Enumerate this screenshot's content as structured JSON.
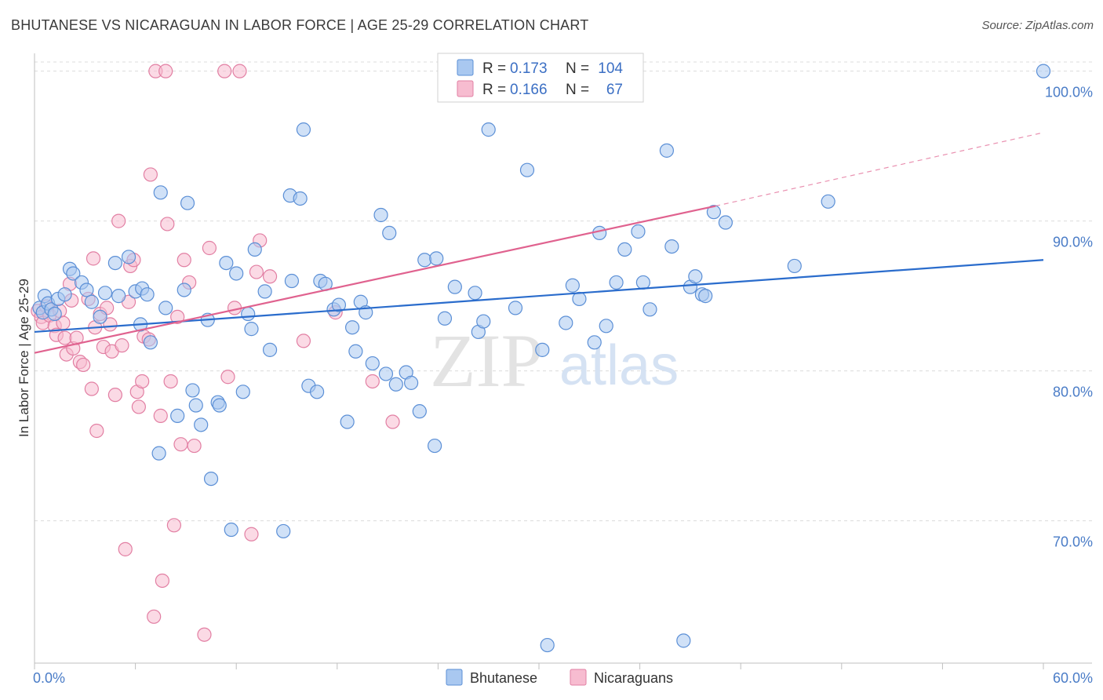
{
  "title": "BHUTANESE VS NICARAGUAN IN LABOR FORCE | AGE 25-29 CORRELATION CHART",
  "source": "Source: ZipAtlas.com",
  "watermark": {
    "zip": "ZIP",
    "atlas": "atlas"
  },
  "colors": {
    "blue_fill": "#a9c8f0",
    "blue_stroke": "#5b8fd6",
    "blue_line": "#2a6ccc",
    "pink_fill": "#f7bcd0",
    "pink_stroke": "#e27fa3",
    "pink_line": "#e0628f",
    "grid": "#dcdcdc",
    "tick_text": "#4a7cc7"
  },
  "legend": {
    "rows": [
      {
        "r_label": "R =",
        "r_value": "0.173",
        "n_label": "N =",
        "n_value": "104"
      },
      {
        "r_label": "R =",
        "r_value": "0.166",
        "n_label": "N =",
        "n_value": "67"
      }
    ]
  },
  "bottom_legend": {
    "items": [
      "Bhutanese",
      "Nicaraguans"
    ]
  },
  "chart_data": {
    "type": "scatter",
    "xlabel": "",
    "ylabel": "In Labor Force | Age 25-29",
    "xlim": [
      0,
      60
    ],
    "ylim": [
      60.5,
      101.5
    ],
    "x_tick_labels": [
      "0.0%",
      "60.0%"
    ],
    "y_ticks": [
      70,
      80,
      90,
      100
    ],
    "y_tick_labels": [
      "70.0%",
      "80.0%",
      "90.0%",
      "100.0%"
    ],
    "grid": true,
    "legend_position": "top-center",
    "series": [
      {
        "name": "Bhutanese",
        "R": 0.173,
        "N": 104,
        "trend": {
          "x": [
            0,
            60
          ],
          "y": [
            82.6,
            87.4
          ],
          "dashed_to": null
        },
        "points": [
          [
            0.3,
            84.2
          ],
          [
            0.5,
            83.9
          ],
          [
            0.6,
            85.0
          ],
          [
            0.8,
            84.5
          ],
          [
            1.0,
            84.1
          ],
          [
            1.2,
            83.8
          ],
          [
            1.4,
            84.8
          ],
          [
            1.8,
            85.1
          ],
          [
            2.1,
            86.8
          ],
          [
            2.3,
            86.5
          ],
          [
            2.8,
            85.9
          ],
          [
            3.1,
            85.4
          ],
          [
            3.4,
            84.6
          ],
          [
            3.9,
            83.6
          ],
          [
            4.2,
            85.2
          ],
          [
            4.8,
            87.2
          ],
          [
            5.0,
            85.0
          ],
          [
            5.6,
            87.6
          ],
          [
            6.0,
            85.3
          ],
          [
            6.3,
            83.1
          ],
          [
            6.4,
            85.5
          ],
          [
            6.7,
            85.1
          ],
          [
            6.9,
            81.9
          ],
          [
            7.4,
            74.5
          ],
          [
            7.5,
            91.9
          ],
          [
            7.8,
            84.2
          ],
          [
            8.5,
            77.0
          ],
          [
            8.9,
            85.4
          ],
          [
            9.1,
            91.2
          ],
          [
            9.4,
            78.7
          ],
          [
            9.6,
            77.7
          ],
          [
            9.9,
            76.4
          ],
          [
            10.3,
            83.4
          ],
          [
            10.5,
            72.8
          ],
          [
            10.9,
            77.9
          ],
          [
            11.0,
            77.7
          ],
          [
            11.4,
            87.2
          ],
          [
            11.7,
            69.4
          ],
          [
            12.0,
            86.5
          ],
          [
            12.4,
            78.6
          ],
          [
            12.7,
            83.8
          ],
          [
            12.9,
            82.8
          ],
          [
            13.1,
            88.1
          ],
          [
            13.7,
            85.3
          ],
          [
            14.0,
            81.4
          ],
          [
            14.8,
            69.3
          ],
          [
            15.2,
            91.7
          ],
          [
            15.3,
            86.0
          ],
          [
            15.8,
            91.5
          ],
          [
            16.0,
            96.1
          ],
          [
            16.3,
            79.0
          ],
          [
            16.8,
            78.6
          ],
          [
            17.0,
            86.0
          ],
          [
            17.3,
            85.8
          ],
          [
            17.8,
            84.1
          ],
          [
            18.1,
            84.4
          ],
          [
            18.6,
            76.6
          ],
          [
            18.9,
            82.9
          ],
          [
            19.1,
            81.3
          ],
          [
            19.4,
            84.6
          ],
          [
            19.7,
            83.9
          ],
          [
            20.1,
            80.5
          ],
          [
            20.6,
            90.4
          ],
          [
            20.9,
            79.8
          ],
          [
            21.1,
            89.2
          ],
          [
            21.5,
            79.1
          ],
          [
            22.1,
            79.9
          ],
          [
            22.4,
            79.2
          ],
          [
            22.9,
            77.3
          ],
          [
            23.2,
            87.4
          ],
          [
            23.8,
            75.0
          ],
          [
            23.9,
            87.5
          ],
          [
            24.4,
            83.5
          ],
          [
            25.0,
            85.6
          ],
          [
            26.2,
            85.2
          ],
          [
            26.4,
            82.6
          ],
          [
            26.7,
            83.3
          ],
          [
            27.0,
            96.1
          ],
          [
            28.6,
            84.2
          ],
          [
            29.3,
            93.4
          ],
          [
            30.2,
            81.4
          ],
          [
            30.5,
            61.7
          ],
          [
            31.6,
            83.2
          ],
          [
            32.0,
            85.7
          ],
          [
            32.4,
            84.8
          ],
          [
            33.3,
            81.9
          ],
          [
            33.6,
            89.2
          ],
          [
            34.0,
            83.0
          ],
          [
            34.6,
            85.9
          ],
          [
            35.1,
            88.1
          ],
          [
            35.9,
            89.3
          ],
          [
            36.2,
            85.9
          ],
          [
            36.6,
            84.1
          ],
          [
            37.6,
            94.7
          ],
          [
            37.9,
            88.3
          ],
          [
            38.6,
            62.0
          ],
          [
            39.0,
            85.6
          ],
          [
            39.3,
            86.3
          ],
          [
            39.7,
            85.1
          ],
          [
            39.9,
            85.0
          ],
          [
            40.4,
            90.6
          ],
          [
            41.1,
            89.9
          ],
          [
            45.2,
            87.0
          ],
          [
            47.2,
            91.3
          ],
          [
            60.0,
            100.0
          ]
        ]
      },
      {
        "name": "Nicaraguans",
        "R": 0.166,
        "N": 67,
        "trend": {
          "x": [
            0,
            40.5
          ],
          "y": [
            81.2,
            91.0
          ],
          "dashed_to": {
            "x": 60,
            "y": 95.9
          }
        },
        "points": [
          [
            0.2,
            84.0
          ],
          [
            0.4,
            83.6
          ],
          [
            0.5,
            83.2
          ],
          [
            0.7,
            84.3
          ],
          [
            0.9,
            83.7
          ],
          [
            1.2,
            83.0
          ],
          [
            1.3,
            82.4
          ],
          [
            1.5,
            84.0
          ],
          [
            1.7,
            83.2
          ],
          [
            1.8,
            82.2
          ],
          [
            1.9,
            81.1
          ],
          [
            2.1,
            85.8
          ],
          [
            2.2,
            84.7
          ],
          [
            2.3,
            81.5
          ],
          [
            2.5,
            82.2
          ],
          [
            2.7,
            80.6
          ],
          [
            2.9,
            80.4
          ],
          [
            3.2,
            84.8
          ],
          [
            3.4,
            78.8
          ],
          [
            3.5,
            87.5
          ],
          [
            3.6,
            82.9
          ],
          [
            3.7,
            76.0
          ],
          [
            3.9,
            83.8
          ],
          [
            4.1,
            81.6
          ],
          [
            4.3,
            84.2
          ],
          [
            4.5,
            83.1
          ],
          [
            4.6,
            81.3
          ],
          [
            4.8,
            78.4
          ],
          [
            5.0,
            90.0
          ],
          [
            5.2,
            81.7
          ],
          [
            5.4,
            68.1
          ],
          [
            5.6,
            84.6
          ],
          [
            5.7,
            87.0
          ],
          [
            5.9,
            87.4
          ],
          [
            6.1,
            78.6
          ],
          [
            6.2,
            77.6
          ],
          [
            6.4,
            79.3
          ],
          [
            6.5,
            82.3
          ],
          [
            6.8,
            82.1
          ],
          [
            6.9,
            93.1
          ],
          [
            7.1,
            63.6
          ],
          [
            7.2,
            100.0
          ],
          [
            7.5,
            77.0
          ],
          [
            7.6,
            66.0
          ],
          [
            7.8,
            100.0
          ],
          [
            7.9,
            89.8
          ],
          [
            8.1,
            79.3
          ],
          [
            8.3,
            69.7
          ],
          [
            8.5,
            83.6
          ],
          [
            8.7,
            75.1
          ],
          [
            8.9,
            87.4
          ],
          [
            9.2,
            85.9
          ],
          [
            9.5,
            75.0
          ],
          [
            10.1,
            62.4
          ],
          [
            10.4,
            88.2
          ],
          [
            11.3,
            100.0
          ],
          [
            11.5,
            79.6
          ],
          [
            11.9,
            84.2
          ],
          [
            12.2,
            100.0
          ],
          [
            12.9,
            69.1
          ],
          [
            13.2,
            86.6
          ],
          [
            13.4,
            88.7
          ],
          [
            14.0,
            86.3
          ],
          [
            16.0,
            82.0
          ],
          [
            17.9,
            83.9
          ],
          [
            20.1,
            79.3
          ],
          [
            21.3,
            76.6
          ]
        ]
      }
    ]
  }
}
